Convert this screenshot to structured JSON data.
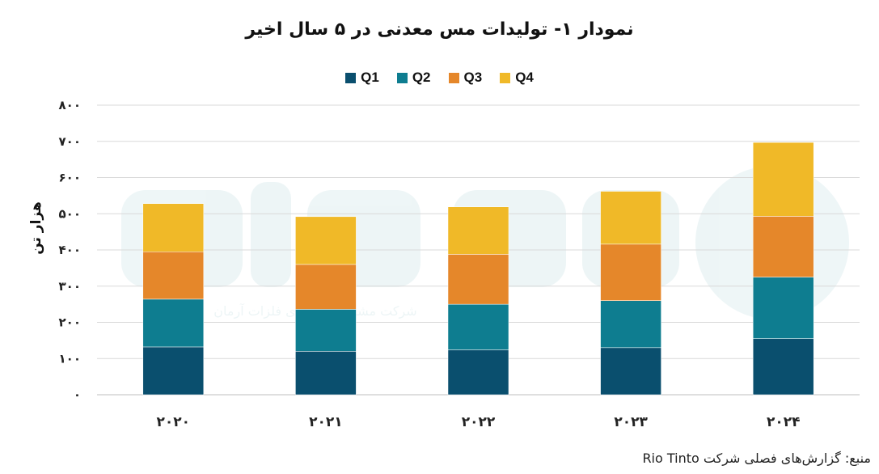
{
  "chart_data": {
    "type": "bar",
    "stacked": true,
    "title": "نمودار ۱- تولیدات مس معدنی در ۵ سال اخیر",
    "ylabel": "هزار تن",
    "xlabel": "",
    "categories": [
      "۲۰۲۰",
      "۲۰۲۱",
      "۲۰۲۲",
      "۲۰۲۳",
      "۲۰۲۴"
    ],
    "ylim": [
      0,
      800
    ],
    "yticks": [
      0,
      100,
      200,
      300,
      400,
      500,
      600,
      700,
      800
    ],
    "ytick_labels": [
      "۰",
      "۱۰۰",
      "۲۰۰",
      "۳۰۰",
      "۴۰۰",
      "۵۰۰",
      "۶۰۰",
      "۷۰۰",
      "۸۰۰"
    ],
    "series": [
      {
        "name": "Q1",
        "color": "#0a4f6e",
        "values": [
          132,
          120,
          124,
          130,
          155
        ]
      },
      {
        "name": "Q2",
        "color": "#0e7d90",
        "values": [
          132,
          116,
          126,
          130,
          170
        ]
      },
      {
        "name": "Q3",
        "color": "#e5872a",
        "values": [
          131,
          124,
          138,
          156,
          168
        ]
      },
      {
        "name": "Q4",
        "color": "#f0b928",
        "values": [
          133,
          132,
          131,
          146,
          204
        ]
      }
    ],
    "legend_position": "top",
    "grid": true
  },
  "source": "منبع: گزارش‌های فصلی شرکت Rio Tinto",
  "watermark": "شرکت مشاوره اقتصادی فلزات آرمان"
}
